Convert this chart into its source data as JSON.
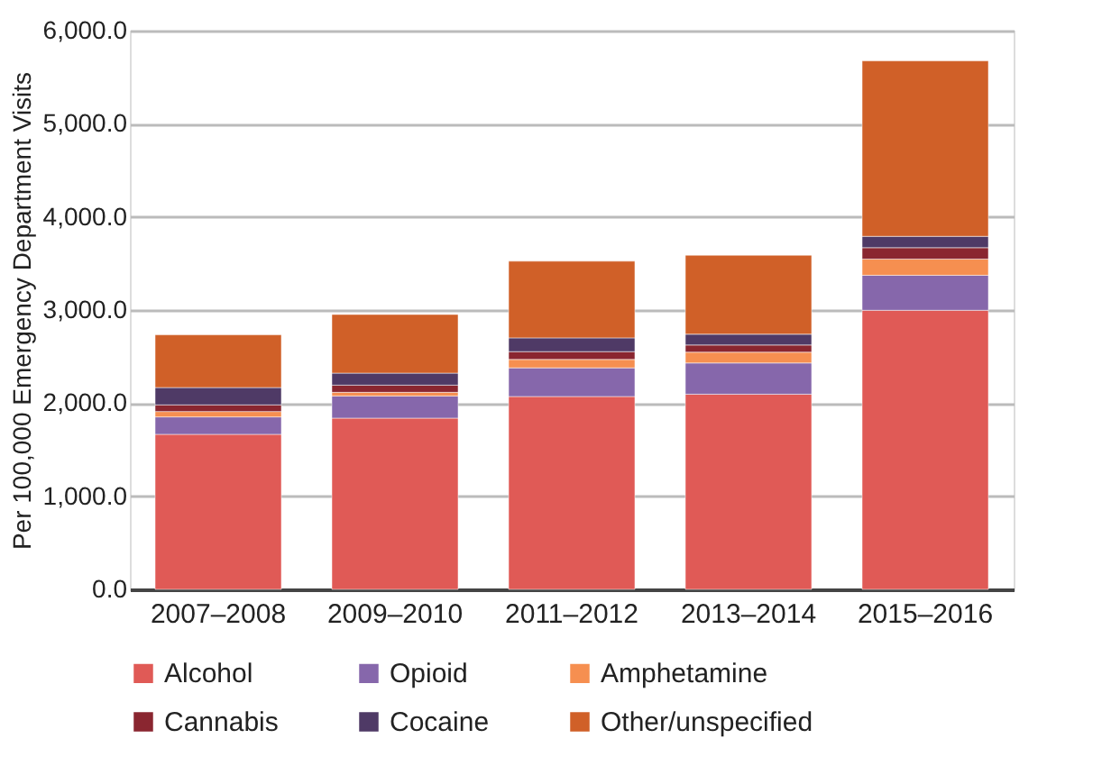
{
  "chart_data": {
    "type": "bar",
    "stacked": true,
    "ylabel": "Per 100,000 Emergency Department Visits",
    "categories": [
      "2007–2008",
      "2009–2010",
      "2011–2012",
      "2013–2014",
      "2015–2016"
    ],
    "series": [
      {
        "name": "Alcohol",
        "color": "#e05a56",
        "values": [
          1665,
          1839,
          2071,
          2096,
          2997
        ]
      },
      {
        "name": "Opioid",
        "color": "#8667ab",
        "values": [
          187,
          238,
          308,
          335,
          376
        ]
      },
      {
        "name": "Amphetamine",
        "color": "#f68f50",
        "values": [
          58,
          39,
          90,
          116,
          174
        ]
      },
      {
        "name": "Cannabis",
        "color": "#8a2630",
        "values": [
          71,
          77,
          84,
          77,
          122
        ]
      },
      {
        "name": "Cocaine",
        "color": "#4f3a66",
        "values": [
          186,
          129,
          148,
          116,
          122
        ]
      },
      {
        "name": "Other/unspecified",
        "color": "#d06028",
        "values": [
          566,
          630,
          823,
          848,
          1884
        ]
      }
    ],
    "ylim": [
      0,
      6000
    ],
    "yticks": [
      {
        "value": 0,
        "label": "0.0"
      },
      {
        "value": 1000,
        "label": "1,000.0"
      },
      {
        "value": 2000,
        "label": "2,000.0"
      },
      {
        "value": 3000,
        "label": "3,000.0"
      },
      {
        "value": 4000,
        "label": "4,000.0"
      },
      {
        "value": 5000,
        "label": "5,000.0"
      },
      {
        "value": 6000,
        "label": "6,000.0"
      }
    ],
    "grid": "y",
    "legend": "bottom"
  }
}
